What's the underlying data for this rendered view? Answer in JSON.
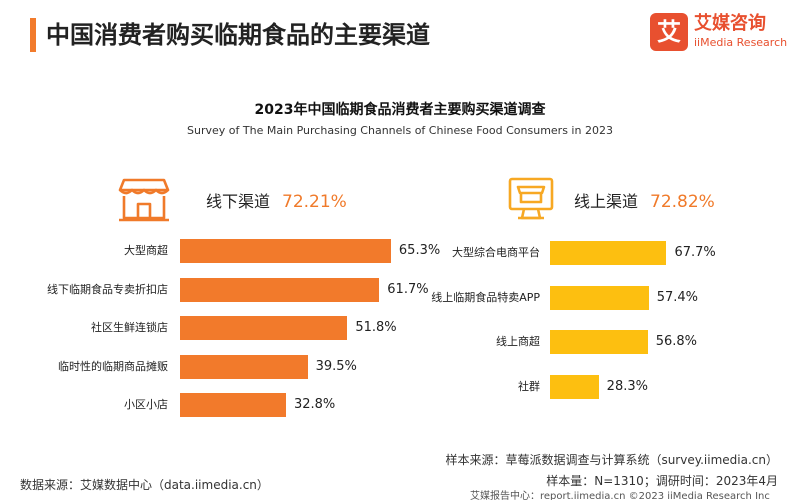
{
  "header": {
    "title": "中国消费者购买临期食品的主要渠道"
  },
  "logo": {
    "mark": "艾",
    "name_cn": "艾媒咨询",
    "name_en": "iiMedia Research"
  },
  "colors": {
    "offline_bar": "#f27a2b",
    "online_bar": "#fdbf10",
    "accent": "#f07a2a",
    "header_bar": "#f27b2c"
  },
  "chart_data": {
    "type": "bar",
    "orientation": "horizontal",
    "title": "2023年中国临期食品消费者主要购买渠道调查",
    "subtitle": "Survey of The Main Purchasing Channels of Chinese Food Consumers in 2023",
    "panels": [
      {
        "name": "线下渠道",
        "total": "72.21%",
        "icon": "storefront-icon",
        "categories": [
          "大型商超",
          "线下临期食品专卖折扣店",
          "社区生鲜连锁店",
          "临时性的临期商品摊贩",
          "小区小店"
        ],
        "values": [
          65.3,
          61.7,
          51.8,
          39.5,
          32.8
        ],
        "value_labels": [
          "65.3%",
          "61.7%",
          "51.8%",
          "39.5%",
          "32.8%"
        ]
      },
      {
        "name": "线上渠道",
        "total": "72.82%",
        "icon": "online-shop-icon",
        "categories": [
          "大型综合电商平台",
          "线上临期食品特卖APP",
          "线上商超",
          "社群"
        ],
        "values": [
          67.7,
          57.4,
          56.8,
          28.3
        ],
        "value_labels": [
          "67.7%",
          "57.4%",
          "56.8%",
          "28.3%"
        ]
      }
    ],
    "unit": "%"
  },
  "footer": {
    "data_source": "数据来源：艾媒数据中心（data.iimedia.cn）",
    "sample_source": "样本来源：草莓派数据调查与计算系统（survey.iimedia.cn）",
    "sample_size": "样本量：N=1310；调研时间：2023年4月",
    "copyright": "艾媒报告中心：report.iimedia.cn ©2023 iiMedia Research Inc"
  }
}
